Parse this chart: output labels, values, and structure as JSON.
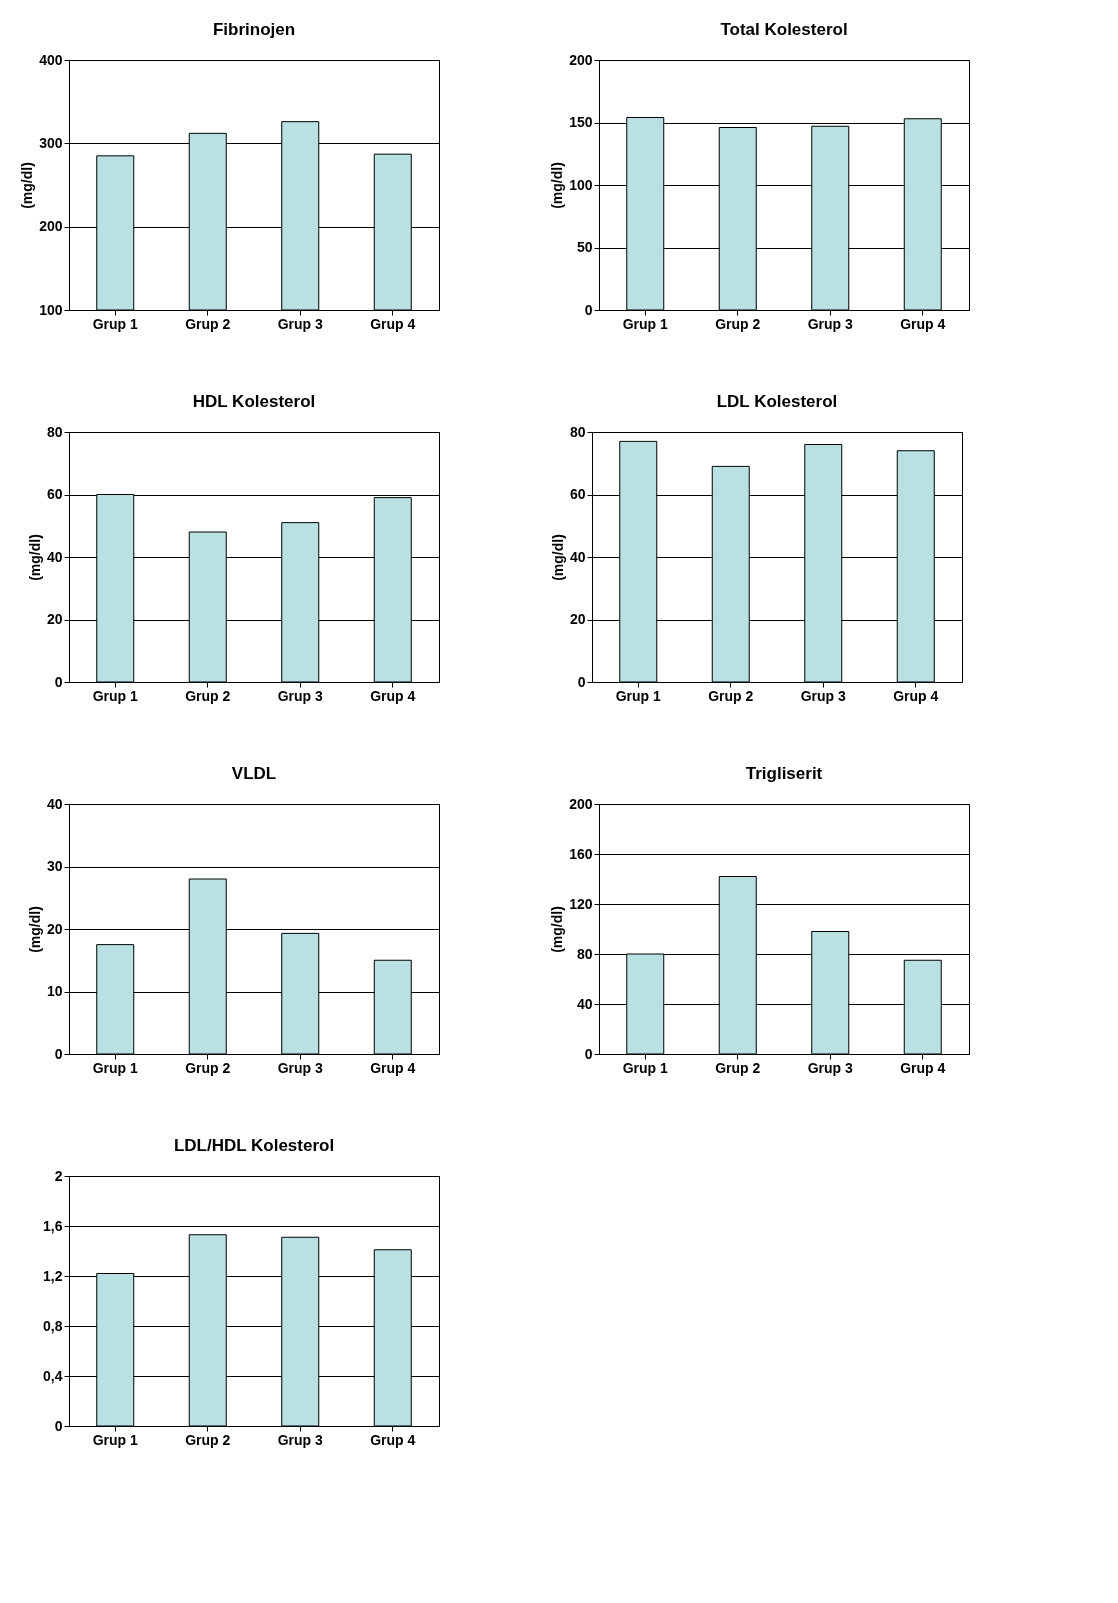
{
  "chart_data": [
    {
      "type": "bar",
      "title": "Fibrinojen",
      "ylabel": "(mg/dl)",
      "categories": [
        "Grup 1",
        "Grup 2",
        "Grup 3",
        "Grup 4"
      ],
      "values": [
        285,
        312,
        326,
        287
      ],
      "color": "#b9e0e3",
      "ylim": [
        100,
        400
      ],
      "yticks": [
        100,
        200,
        300,
        400
      ],
      "grid": "y"
    },
    {
      "type": "bar",
      "title": "Total Kolesterol",
      "ylabel": "(mg/dl)",
      "categories": [
        "Grup 1",
        "Grup 2",
        "Grup 3",
        "Grup 4"
      ],
      "values": [
        154,
        146,
        147,
        153
      ],
      "color": "#b9e0e3",
      "ylim": [
        0,
        200
      ],
      "yticks": [
        0,
        50,
        100,
        150,
        200
      ],
      "grid": "y"
    },
    {
      "type": "bar",
      "title": "HDL Kolesterol",
      "ylabel": "(mg/dl)",
      "categories": [
        "Grup 1",
        "Grup 2",
        "Grup 3",
        "Grup 4"
      ],
      "values": [
        60,
        48,
        51,
        59
      ],
      "color": "#b9e0e3",
      "ylim": [
        0,
        80
      ],
      "yticks": [
        0,
        20,
        40,
        60,
        80
      ],
      "grid": "y"
    },
    {
      "type": "bar",
      "title": "LDL Kolesterol",
      "ylabel": "(mg/dl)",
      "categories": [
        "Grup 1",
        "Grup 2",
        "Grup 3",
        "Grup 4"
      ],
      "values": [
        77,
        69,
        76,
        74
      ],
      "color": "#b9e0e3",
      "ylim": [
        0,
        80
      ],
      "yticks": [
        0,
        20,
        40,
        60,
        80
      ],
      "grid": "y"
    },
    {
      "type": "bar",
      "title": "VLDL",
      "ylabel": "(mg/dl)",
      "categories": [
        "Grup 1",
        "Grup 2",
        "Grup 3",
        "Grup 4"
      ],
      "values": [
        17.5,
        28,
        19.3,
        15
      ],
      "color": "#b9e0e3",
      "ylim": [
        0,
        40
      ],
      "yticks": [
        0,
        10,
        20,
        30,
        40
      ],
      "grid": "y"
    },
    {
      "type": "bar",
      "title": "Trigliserit",
      "ylabel": "(mg/dl)",
      "categories": [
        "Grup 1",
        "Grup 2",
        "Grup 3",
        "Grup 4"
      ],
      "values": [
        80,
        142,
        98,
        75
      ],
      "color": "#b9e0e3",
      "ylim": [
        0,
        200
      ],
      "yticks": [
        0,
        40,
        80,
        120,
        160,
        200
      ],
      "grid": "y"
    },
    {
      "type": "bar",
      "title": "LDL/HDL Kolesterol",
      "categories": [
        "Grup 1",
        "Grup 2",
        "Grup 3",
        "Grup 4"
      ],
      "values": [
        1.22,
        1.53,
        1.51,
        1.41
      ],
      "color": "#b9e0e3",
      "ylim": [
        0,
        2
      ],
      "yticks": [
        0,
        {
          "value": 0.4,
          "label": "0,4"
        },
        {
          "value": 0.8,
          "label": "0,8"
        },
        {
          "value": 1.2,
          "label": "1,2"
        },
        {
          "value": 1.6,
          "label": "1,6"
        },
        2
      ],
      "grid": "y"
    }
  ]
}
